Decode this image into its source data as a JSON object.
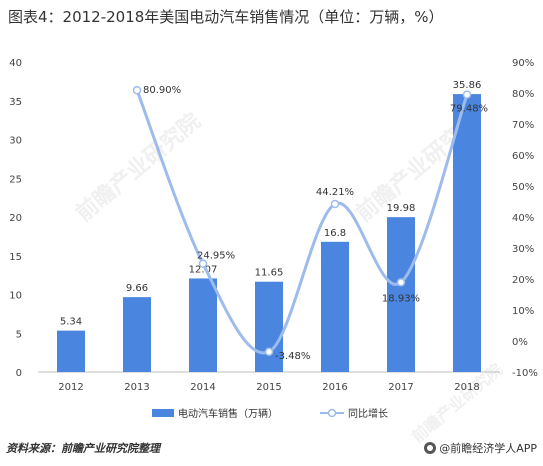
{
  "title": "图表4：2012-2018年美国电动汽车销售情况（单位：万辆，%）",
  "source": "资料来源：前瞻产业研究院整理",
  "brand": "@前瞻经济学人APP",
  "watermark": "前瞻产业研究院",
  "colors": {
    "bar": "#4A86E0",
    "line": "#9DBCEB",
    "axis": "#999999",
    "text": "#444444"
  },
  "chart_data": {
    "type": "bar",
    "categories": [
      "2012",
      "2013",
      "2014",
      "2015",
      "2016",
      "2017",
      "2018"
    ],
    "series": [
      {
        "name": "电动汽车销售（万辆）",
        "type": "bar",
        "axis": "left",
        "values": [
          5.34,
          9.66,
          12.07,
          11.65,
          16.8,
          19.98,
          35.86
        ],
        "labels": [
          "5.34",
          "9.66",
          "12.07",
          "11.65",
          "16.8",
          "19.98",
          "35.86"
        ]
      },
      {
        "name": "同比增长",
        "type": "line",
        "axis": "right",
        "values": [
          null,
          80.9,
          24.95,
          -3.48,
          44.21,
          18.93,
          79.48
        ],
        "labels": [
          null,
          "80.90%",
          "24.95%",
          "-3.48%",
          "44.21%",
          "18.93%",
          "79.48%"
        ]
      }
    ],
    "y_left": {
      "min": 0,
      "max": 40,
      "step": 5,
      "ticks": [
        "0",
        "5",
        "10",
        "15",
        "20",
        "25",
        "30",
        "35",
        "40"
      ]
    },
    "y_right": {
      "min": -10,
      "max": 90,
      "step": 10,
      "ticks": [
        "-10%",
        "0%",
        "10%",
        "20%",
        "30%",
        "40%",
        "50%",
        "60%",
        "70%",
        "80%",
        "90%"
      ]
    },
    "legend_position": "bottom",
    "grid": false
  }
}
